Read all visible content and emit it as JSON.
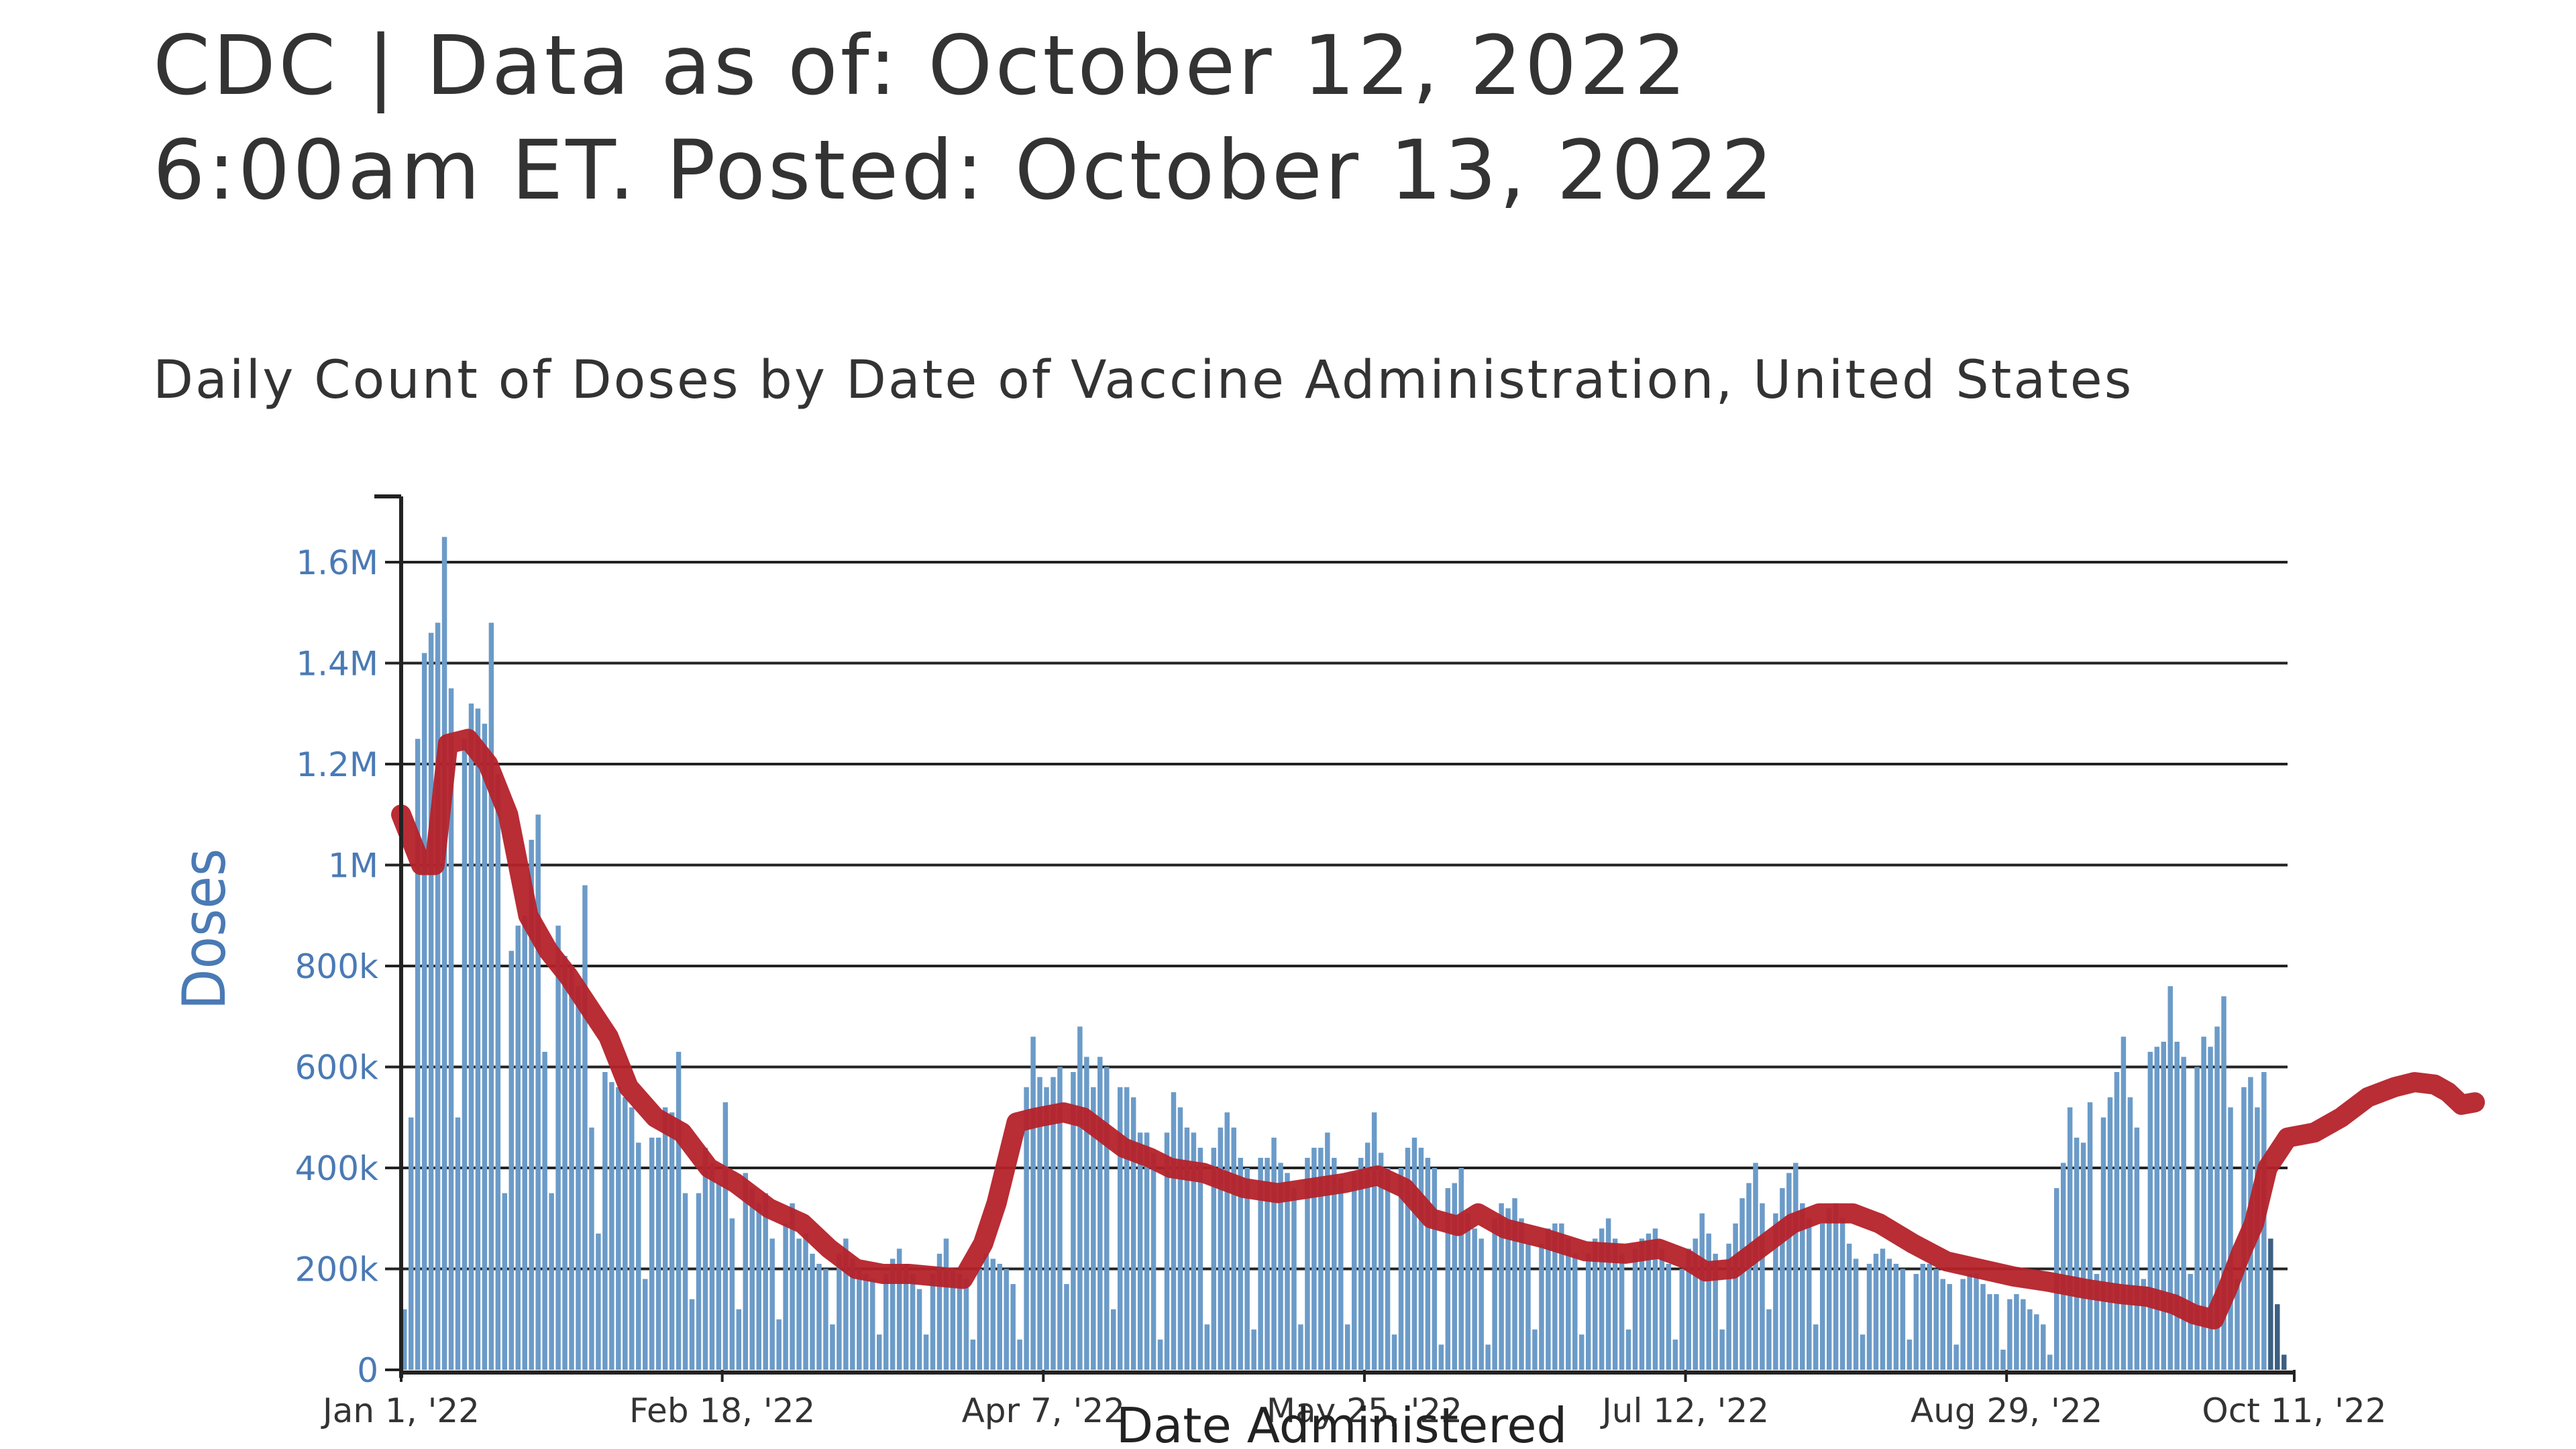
{
  "header": {
    "line1": "CDC | Data as of: October 12, 2022",
    "line2": "6:00am ET. Posted: October 13, 2022"
  },
  "colors": {
    "bars": "#6b9bc8",
    "trend": "#b5222a",
    "axis_text": "#4a7ab5",
    "grid": "#222222",
    "tick_text": "#333333"
  },
  "chart_data": {
    "type": "bar",
    "title": "Daily Count of Doses by Date of Vaccine Administration, United States",
    "xlabel": "Date Administered",
    "ylabel": "Doses",
    "ylim": [
      0,
      1700000
    ],
    "grid": true,
    "x_tick_labels": [
      "Jan 1, '22",
      "Feb 18, '22",
      "Apr 7, '22",
      "May 25, '22",
      "Jul 12, '22",
      "Aug 29, '22",
      "Oct 11, '22"
    ],
    "x_tick_days": [
      0,
      48,
      96,
      144,
      192,
      240,
      283
    ],
    "y_ticks": [
      0,
      200000,
      400000,
      600000,
      800000,
      1000000,
      1200000,
      1400000,
      1600000
    ],
    "y_tick_labels": [
      "0",
      "200k",
      "400k",
      "600k",
      "800k",
      "1M",
      "1.2M",
      "1.4M",
      "1.6M"
    ],
    "series": [
      {
        "kind": "bars",
        "values": [
          120000,
          500000,
          1250000,
          1420000,
          1460000,
          1480000,
          1650000,
          1350000,
          500000,
          1250000,
          1320000,
          1310000,
          1280000,
          1480000,
          1180000,
          350000,
          830000,
          880000,
          900000,
          1050000,
          1100000,
          630000,
          350000,
          880000,
          820000,
          800000,
          760000,
          960000,
          480000,
          270000,
          590000,
          570000,
          560000,
          540000,
          520000,
          450000,
          180000,
          460000,
          460000,
          520000,
          510000,
          630000,
          350000,
          140000,
          350000,
          440000,
          410000,
          370000,
          530000,
          300000,
          120000,
          390000,
          360000,
          330000,
          350000,
          260000,
          100000,
          290000,
          330000,
          260000,
          270000,
          230000,
          210000,
          200000,
          90000,
          230000,
          260000,
          220000,
          200000,
          190000,
          180000,
          70000,
          190000,
          220000,
          240000,
          210000,
          190000,
          160000,
          70000,
          190000,
          230000,
          260000,
          200000,
          190000,
          180000,
          60000,
          200000,
          230000,
          220000,
          210000,
          200000,
          170000,
          60000,
          560000,
          660000,
          580000,
          560000,
          580000,
          600000,
          170000,
          590000,
          680000,
          620000,
          560000,
          620000,
          600000,
          120000,
          560000,
          560000,
          540000,
          470000,
          470000,
          430000,
          60000,
          470000,
          550000,
          520000,
          480000,
          470000,
          440000,
          90000,
          440000,
          480000,
          510000,
          480000,
          420000,
          400000,
          80000,
          420000,
          420000,
          460000,
          410000,
          390000,
          360000,
          90000,
          420000,
          440000,
          440000,
          470000,
          420000,
          380000,
          90000,
          390000,
          420000,
          450000,
          510000,
          430000,
          400000,
          70000,
          400000,
          440000,
          460000,
          440000,
          420000,
          400000,
          50000,
          360000,
          370000,
          400000,
          310000,
          280000,
          260000,
          50000,
          300000,
          330000,
          320000,
          340000,
          300000,
          250000,
          80000,
          250000,
          280000,
          290000,
          290000,
          260000,
          230000,
          70000,
          230000,
          260000,
          280000,
          300000,
          260000,
          230000,
          80000,
          240000,
          260000,
          270000,
          280000,
          240000,
          210000,
          60000,
          200000,
          240000,
          260000,
          310000,
          270000,
          230000,
          80000,
          250000,
          290000,
          340000,
          370000,
          410000,
          330000,
          120000,
          310000,
          360000,
          390000,
          410000,
          330000,
          300000,
          90000,
          290000,
          320000,
          330000,
          300000,
          250000,
          220000,
          70000,
          210000,
          230000,
          240000,
          220000,
          210000,
          200000,
          60000,
          190000,
          210000,
          210000,
          200000,
          180000,
          170000,
          50000,
          180000,
          190000,
          190000,
          170000,
          150000,
          150000,
          40000,
          140000,
          150000,
          140000,
          120000,
          110000,
          90000,
          30000,
          360000,
          410000,
          520000,
          460000,
          450000,
          530000,
          190000,
          500000,
          540000,
          590000,
          660000,
          540000,
          480000,
          180000,
          630000,
          640000,
          650000,
          760000,
          650000,
          620000,
          190000,
          600000,
          660000,
          640000,
          680000,
          740000,
          520000,
          180000,
          560000,
          580000,
          520000,
          590000,
          260000,
          130000,
          30000
        ]
      },
      {
        "kind": "line",
        "name": "",
        "points": [
          [
            0,
            1100000
          ],
          [
            3,
            1000000
          ],
          [
            5,
            1000000
          ],
          [
            7,
            1240000
          ],
          [
            10,
            1250000
          ],
          [
            13,
            1200000
          ],
          [
            16,
            1100000
          ],
          [
            19,
            900000
          ],
          [
            22,
            830000
          ],
          [
            25,
            780000
          ],
          [
            28,
            720000
          ],
          [
            31,
            660000
          ],
          [
            34,
            560000
          ],
          [
            38,
            500000
          ],
          [
            42,
            470000
          ],
          [
            46,
            400000
          ],
          [
            50,
            370000
          ],
          [
            55,
            320000
          ],
          [
            60,
            290000
          ],
          [
            64,
            240000
          ],
          [
            68,
            200000
          ],
          [
            72,
            190000
          ],
          [
            76,
            190000
          ],
          [
            80,
            185000
          ],
          [
            84,
            180000
          ],
          [
            87,
            250000
          ],
          [
            89,
            330000
          ],
          [
            92,
            490000
          ],
          [
            95,
            500000
          ],
          [
            99,
            510000
          ],
          [
            102,
            500000
          ],
          [
            105,
            470000
          ],
          [
            108,
            440000
          ],
          [
            112,
            420000
          ],
          [
            115,
            400000
          ],
          [
            120,
            390000
          ],
          [
            126,
            360000
          ],
          [
            131,
            350000
          ],
          [
            136,
            360000
          ],
          [
            141,
            370000
          ],
          [
            146,
            385000
          ],
          [
            150,
            360000
          ],
          [
            154,
            300000
          ],
          [
            158,
            285000
          ],
          [
            161,
            310000
          ],
          [
            165,
            280000
          ],
          [
            171,
            260000
          ],
          [
            177,
            235000
          ],
          [
            183,
            230000
          ],
          [
            188,
            240000
          ],
          [
            192,
            220000
          ],
          [
            195,
            195000
          ],
          [
            199,
            200000
          ],
          [
            203,
            240000
          ],
          [
            208,
            290000
          ],
          [
            212,
            310000
          ],
          [
            217,
            310000
          ],
          [
            221,
            290000
          ],
          [
            226,
            250000
          ],
          [
            231,
            215000
          ],
          [
            236,
            200000
          ],
          [
            241,
            185000
          ],
          [
            246,
            175000
          ],
          [
            252,
            160000
          ],
          [
            257,
            150000
          ],
          [
            261,
            145000
          ],
          [
            265,
            130000
          ],
          [
            268,
            110000
          ],
          [
            271,
            100000
          ],
          [
            273,
            160000
          ],
          [
            275,
            230000
          ],
          [
            277,
            290000
          ],
          [
            279,
            400000
          ],
          [
            282,
            460000
          ],
          [
            286,
            470000
          ],
          [
            290,
            500000
          ],
          [
            294,
            540000
          ],
          [
            298,
            560000
          ],
          [
            301,
            570000
          ],
          [
            304,
            565000
          ],
          [
            306,
            550000
          ],
          [
            308,
            525000
          ],
          [
            310,
            530000
          ]
        ]
      }
    ]
  }
}
